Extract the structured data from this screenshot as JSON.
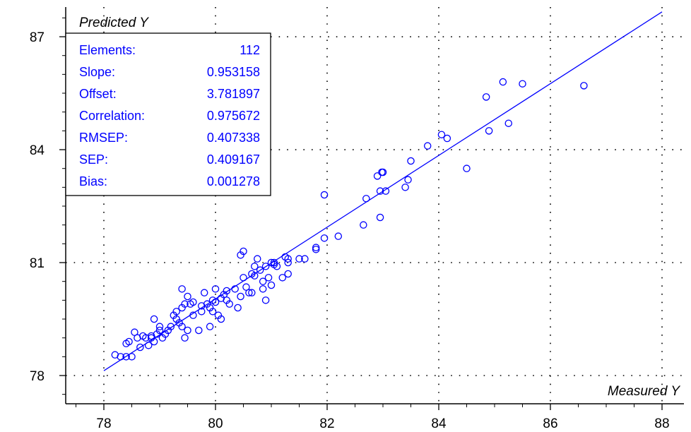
{
  "chart_data": {
    "type": "scatter",
    "xlabel": "Measured Y",
    "ylabel": "Predicted Y",
    "xlim": [
      77.2,
      88.3
    ],
    "ylim": [
      77.4,
      88.2
    ],
    "x_ticks": [
      78,
      80,
      82,
      84,
      86,
      88
    ],
    "y_ticks": [
      78,
      81,
      84,
      87
    ],
    "grid": "dotted",
    "colors": {
      "points": "#0000ff",
      "fit_line": "#0000ff",
      "stats_text": "#0000ff",
      "axes": "#000000"
    },
    "stats": [
      {
        "label": "Elements:",
        "value": "112"
      },
      {
        "label": "Slope:",
        "value": "0.953158"
      },
      {
        "label": "Offset:",
        "value": "3.781897"
      },
      {
        "label": "Correlation:",
        "value": "0.975672"
      },
      {
        "label": "RMSEP:",
        "value": "0.407338"
      },
      {
        "label": "SEP:",
        "value": "0.409167"
      },
      {
        "label": "Bias:",
        "value": "0.001278"
      }
    ],
    "fit_line": {
      "slope": 0.953158,
      "offset": 3.781897,
      "x_range": [
        78.0,
        88.0
      ]
    },
    "points": [
      [
        78.3,
        78.5
      ],
      [
        78.4,
        78.5
      ],
      [
        78.5,
        78.5
      ],
      [
        78.4,
        78.85
      ],
      [
        78.45,
        78.9
      ],
      [
        78.55,
        79.15
      ],
      [
        78.65,
        78.75
      ],
      [
        78.7,
        79.05
      ],
      [
        78.75,
        79.0
      ],
      [
        78.8,
        78.8
      ],
      [
        78.85,
        79.0
      ],
      [
        78.9,
        78.9
      ],
      [
        78.95,
        79.1
      ],
      [
        79.0,
        79.2
      ],
      [
        79.05,
        79.0
      ],
      [
        79.1,
        79.1
      ],
      [
        79.15,
        79.2
      ],
      [
        78.9,
        79.5
      ],
      [
        79.2,
        79.3
      ],
      [
        79.25,
        79.6
      ],
      [
        79.3,
        79.5
      ],
      [
        79.3,
        79.7
      ],
      [
        79.35,
        79.4
      ],
      [
        79.4,
        79.3
      ],
      [
        79.45,
        79.0
      ],
      [
        79.5,
        79.2
      ],
      [
        79.4,
        79.8
      ],
      [
        79.45,
        79.9
      ],
      [
        79.4,
        80.3
      ],
      [
        79.5,
        80.1
      ],
      [
        79.55,
        79.9
      ],
      [
        79.6,
        79.6
      ],
      [
        79.7,
        79.2
      ],
      [
        79.75,
        79.7
      ],
      [
        79.8,
        80.2
      ],
      [
        79.85,
        79.9
      ],
      [
        79.9,
        79.8
      ],
      [
        79.9,
        79.3
      ],
      [
        79.95,
        79.7
      ],
      [
        80.0,
        80.3
      ],
      [
        80.0,
        79.95
      ],
      [
        80.05,
        79.6
      ],
      [
        80.1,
        80.05
      ],
      [
        80.1,
        79.5
      ],
      [
        80.15,
        80.15
      ],
      [
        80.2,
        80.0
      ],
      [
        80.25,
        79.9
      ],
      [
        79.95,
        80.0
      ],
      [
        80.35,
        80.3
      ],
      [
        80.4,
        79.8
      ],
      [
        80.45,
        80.1
      ],
      [
        80.5,
        80.6
      ],
      [
        80.45,
        81.2
      ],
      [
        80.5,
        81.3
      ],
      [
        80.6,
        80.2
      ],
      [
        80.65,
        80.2
      ],
      [
        80.65,
        80.7
      ],
      [
        80.7,
        80.9
      ],
      [
        80.75,
        81.1
      ],
      [
        80.8,
        80.8
      ],
      [
        80.85,
        80.5
      ],
      [
        80.85,
        80.3
      ],
      [
        80.9,
        80.0
      ],
      [
        80.9,
        80.9
      ],
      [
        80.95,
        80.6
      ],
      [
        81.0,
        80.4
      ],
      [
        81.0,
        81.0
      ],
      [
        81.05,
        81.0
      ],
      [
        81.1,
        80.9
      ],
      [
        81.2,
        80.6
      ],
      [
        81.3,
        80.7
      ],
      [
        81.3,
        81.0
      ],
      [
        81.3,
        81.1
      ],
      [
        81.5,
        81.1
      ],
      [
        81.6,
        81.1
      ],
      [
        81.8,
        81.35
      ],
      [
        81.8,
        81.4
      ],
      [
        81.95,
        81.65
      ],
      [
        82.2,
        81.7
      ],
      [
        81.95,
        82.8
      ],
      [
        82.65,
        82.0
      ],
      [
        82.7,
        82.7
      ],
      [
        82.9,
        83.3
      ],
      [
        82.95,
        82.2
      ],
      [
        82.95,
        82.9
      ],
      [
        82.98,
        83.4
      ],
      [
        83.0,
        83.4
      ],
      [
        83.05,
        82.9
      ],
      [
        83.4,
        83.0
      ],
      [
        83.45,
        83.2
      ],
      [
        83.5,
        83.7
      ],
      [
        83.8,
        84.1
      ],
      [
        84.05,
        84.4
      ],
      [
        84.15,
        84.3
      ],
      [
        84.5,
        83.5
      ],
      [
        84.85,
        85.4
      ],
      [
        84.9,
        84.5
      ],
      [
        85.15,
        85.8
      ],
      [
        85.25,
        84.7
      ],
      [
        85.5,
        85.75
      ],
      [
        86.6,
        85.7
      ],
      [
        78.2,
        78.55
      ],
      [
        78.6,
        79.0
      ],
      [
        79.0,
        79.3
      ],
      [
        79.6,
        79.95
      ],
      [
        80.2,
        80.25
      ],
      [
        80.7,
        80.65
      ],
      [
        81.25,
        81.15
      ],
      [
        80.55,
        80.35
      ],
      [
        79.75,
        79.85
      ],
      [
        78.85,
        79.05
      ],
      [
        81.05,
        80.95
      ]
    ]
  }
}
